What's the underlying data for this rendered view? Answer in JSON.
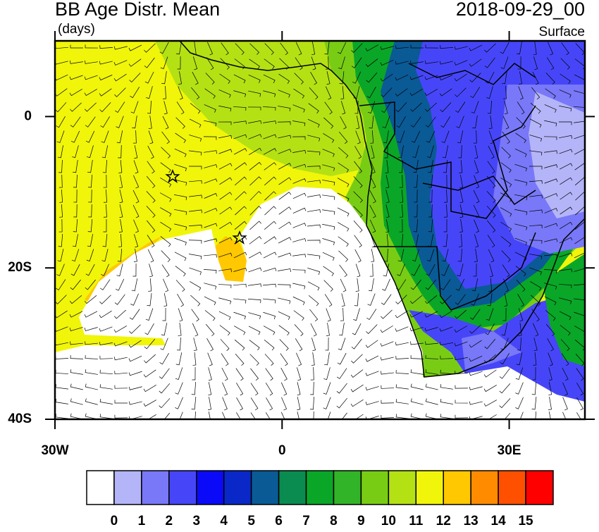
{
  "chart_data": {
    "type": "map",
    "title": "BB Age Distr. Mean",
    "subtitle": "(days)",
    "date": "2018-09-29_00",
    "level": "Surface",
    "xlim": [
      -30,
      40
    ],
    "ylim": [
      -40,
      10
    ],
    "xticks": [
      {
        "value": -30,
        "label": "30W"
      },
      0,
      {
        "value": 30,
        "label": "30E"
      }
    ],
    "yticks": [
      0,
      {
        "value": -20,
        "label": "20S"
      },
      {
        "value": -40,
        "label": "40S"
      }
    ],
    "colorbar": {
      "levels": [
        0,
        1,
        2,
        3,
        4,
        5,
        6,
        7,
        8,
        9,
        10,
        11,
        12,
        13,
        14,
        15
      ],
      "colors": [
        "#ffffff",
        "#b4b4f8",
        "#7878f8",
        "#4646f8",
        "#0a0af8",
        "#0a28c8",
        "#0a5a96",
        "#0a8c50",
        "#0aa628",
        "#32b428",
        "#78cd14",
        "#b4e114",
        "#f0f50a",
        "#ffc800",
        "#ff8c00",
        "#ff5000",
        "#ff0000"
      ]
    }
  }
}
